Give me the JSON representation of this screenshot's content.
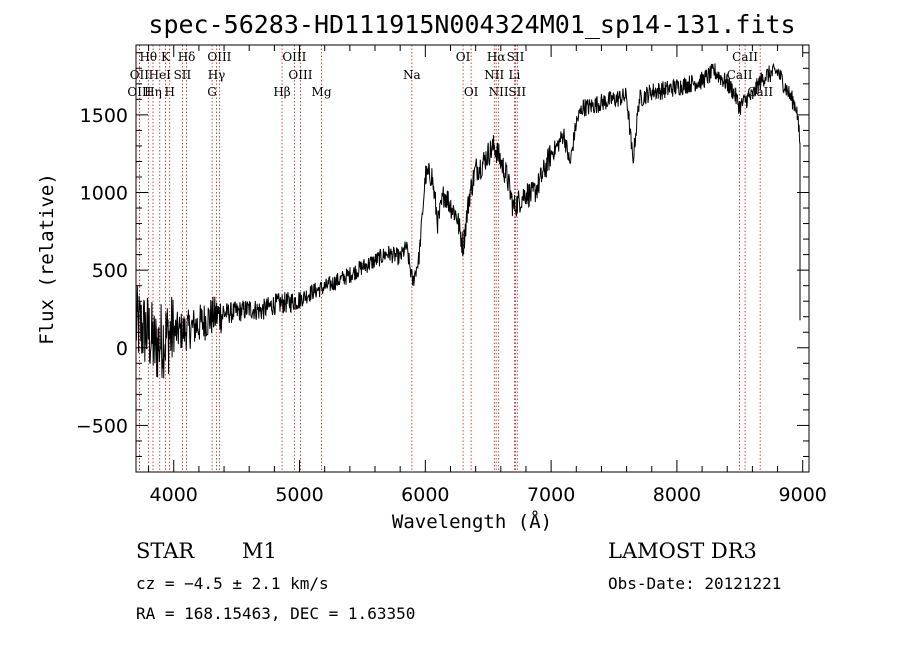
{
  "chart_data": {
    "type": "line",
    "title": "spec-56283-HD111915N004324M01_sp14-131.fits",
    "xlabel": "Wavelength (Å)",
    "ylabel": "Flux (relative)",
    "xlim": [
      3700,
      9050
    ],
    "ylim": [
      -800,
      1950
    ],
    "x_ticks": [
      4000,
      5000,
      6000,
      7000,
      8000,
      9000
    ],
    "x_tick_labels": [
      "4000",
      "5000",
      "6000",
      "7000",
      "8000",
      "9000"
    ],
    "y_ticks": [
      -500,
      0,
      500,
      1000,
      1500
    ],
    "y_tick_labels": [
      "−500",
      "0",
      "500",
      "1000",
      "1500"
    ],
    "spectrum_anchor_points": {
      "x": [
        3700,
        3750,
        3800,
        3850,
        3900,
        4000,
        4100,
        4200,
        4300,
        4400,
        4500,
        4600,
        4700,
        4800,
        4900,
        5000,
        5100,
        5200,
        5300,
        5400,
        5500,
        5600,
        5700,
        5800,
        5850,
        5900,
        5950,
        6000,
        6050,
        6100,
        6150,
        6200,
        6250,
        6300,
        6350,
        6400,
        6450,
        6500,
        6550,
        6600,
        6650,
        6700,
        6750,
        6800,
        6850,
        6900,
        6950,
        7000,
        7050,
        7100,
        7150,
        7200,
        7250,
        7300,
        7400,
        7500,
        7600,
        7650,
        7700,
        7800,
        7900,
        8000,
        8100,
        8200,
        8300,
        8400,
        8450,
        8500,
        8550,
        8600,
        8650,
        8700,
        8800,
        8850,
        8900,
        8950,
        9000,
        9010
      ],
      "y": [
        150,
        120,
        100,
        0,
        50,
        100,
        110,
        150,
        200,
        220,
        230,
        250,
        240,
        280,
        290,
        310,
        360,
        390,
        430,
        470,
        520,
        560,
        610,
        580,
        650,
        420,
        580,
        1100,
        1120,
        800,
        1000,
        920,
        850,
        650,
        980,
        1150,
        1180,
        1250,
        1300,
        1200,
        1100,
        900,
        950,
        1000,
        980,
        1050,
        1150,
        1250,
        1300,
        1380,
        1180,
        1450,
        1550,
        1550,
        1580,
        1600,
        1620,
        1200,
        1600,
        1650,
        1660,
        1680,
        1700,
        1720,
        1780,
        1700,
        1650,
        1550,
        1600,
        1620,
        1700,
        1750,
        1780,
        1700,
        1620,
        1550,
        1150,
        80
      ]
    },
    "reference_lines": [
      {
        "label": "Hθ",
        "x": 3798,
        "row": 0
      },
      {
        "label": "K",
        "x": 3934,
        "row": 0
      },
      {
        "label": "Hδ",
        "x": 4102,
        "row": 0
      },
      {
        "label": "OIII",
        "x": 4363,
        "row": 0
      },
      {
        "label": "OIII",
        "x": 4959,
        "row": 0
      },
      {
        "label": "OI",
        "x": 6300,
        "row": 0
      },
      {
        "label": "Hα",
        "x": 6563,
        "row": 0
      },
      {
        "label": "SII",
        "x": 6717,
        "row": 0
      },
      {
        "label": "CaII",
        "x": 8542,
        "row": 0
      },
      {
        "label": "OII",
        "x": 3727,
        "row": 1
      },
      {
        "label": "HeI",
        "x": 3889,
        "row": 1
      },
      {
        "label": "SII",
        "x": 4069,
        "row": 1
      },
      {
        "label": "Hγ",
        "x": 4340,
        "row": 1
      },
      {
        "label": "OIII",
        "x": 5007,
        "row": 1
      },
      {
        "label": "Na",
        "x": 5893,
        "row": 1
      },
      {
        "label": "NII",
        "x": 6548,
        "row": 1
      },
      {
        "label": "Li",
        "x": 6708,
        "row": 1
      },
      {
        "label": "CaII",
        "x": 8498,
        "row": 1
      },
      {
        "label": "OIII",
        "x": 3727,
        "row": 2
      },
      {
        "label": "Hη",
        "x": 3835,
        "row": 2
      },
      {
        "label": "H",
        "x": 3968,
        "row": 2
      },
      {
        "label": "G",
        "x": 4305,
        "row": 2
      },
      {
        "label": "Hβ",
        "x": 4861,
        "row": 2
      },
      {
        "label": "Mg",
        "x": 5175,
        "row": 2
      },
      {
        "label": "OI",
        "x": 6364,
        "row": 2
      },
      {
        "label": "NII",
        "x": 6583,
        "row": 2
      },
      {
        "label": "SII",
        "x": 6731,
        "row": 2
      },
      {
        "label": "CaII",
        "x": 8662,
        "row": 2
      }
    ]
  },
  "info": {
    "object_class": "STAR",
    "subclass": "M1",
    "survey": "LAMOST DR3",
    "cz": "cz = −4.5 ± 2.1 km/s",
    "obs_date": "Obs-Date: 20121221",
    "radec": "RA = 168.15463, DEC =    1.63350"
  },
  "colors": {
    "spectrum": "#000000",
    "reference_line": "#b22222",
    "axes": "#000000",
    "background": "#ffffff"
  }
}
